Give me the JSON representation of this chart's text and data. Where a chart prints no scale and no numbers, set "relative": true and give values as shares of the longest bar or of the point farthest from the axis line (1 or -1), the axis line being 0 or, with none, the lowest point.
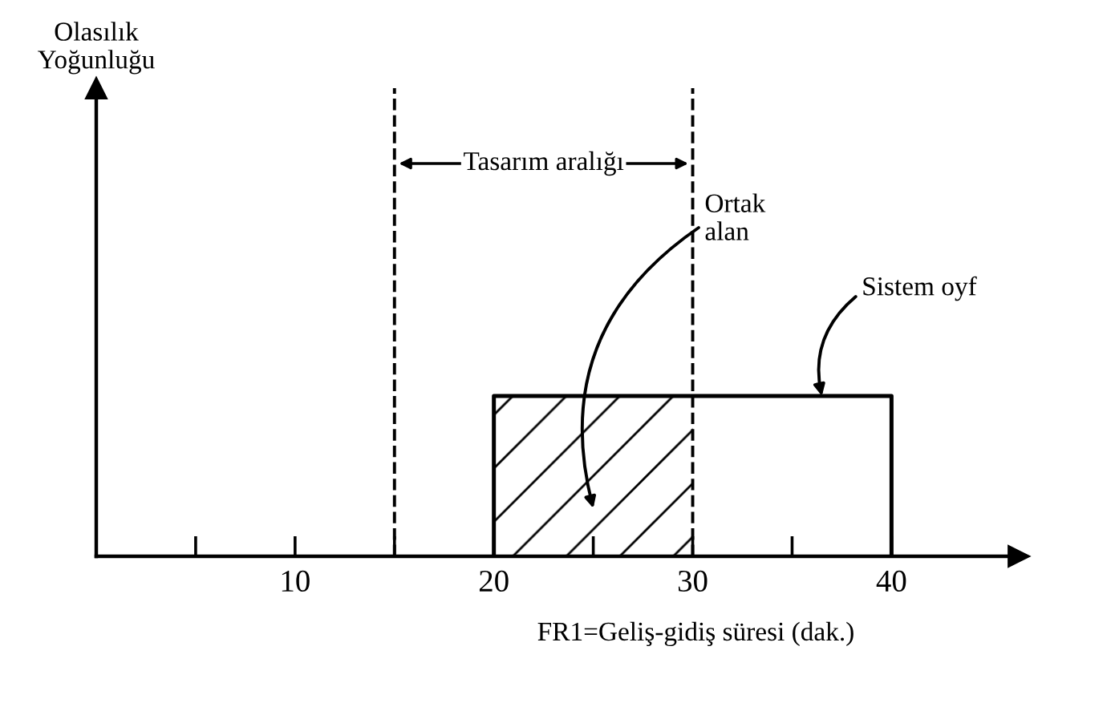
{
  "chart_data": {
    "type": "line",
    "relative": true,
    "xlabel": "FR1=Geliş-gidiş süresi (dak.)",
    "xlim": [
      0,
      46.4
    ],
    "xticks": [
      {
        "value": 5,
        "label": null
      },
      10,
      {
        "value": 15,
        "label": null
      },
      20,
      {
        "value": 25,
        "label": null
      },
      30,
      {
        "value": 35,
        "label": null
      },
      40
    ],
    "series": [
      {
        "x": [
          20,
          20,
          40,
          40
        ],
        "values": [
          0,
          1,
          1,
          0
        ],
        "color": "#000000"
      },
      {
        "type": "area",
        "x": [
          20,
          30
        ],
        "values": [
          1,
          1
        ],
        "color": "#000000"
      }
    ],
    "ref_lines": [
      {
        "axis": "x",
        "value": 15,
        "line_style": "dashed",
        "color": "#000000"
      },
      {
        "axis": "x",
        "value": 30,
        "line_style": "dashed",
        "color": "#000000"
      }
    ],
    "annotations": [
      "Tasarım aralığı",
      "Ortak alan",
      "Sistem oyf",
      "Olasılık\nYoğunluğu"
    ]
  }
}
